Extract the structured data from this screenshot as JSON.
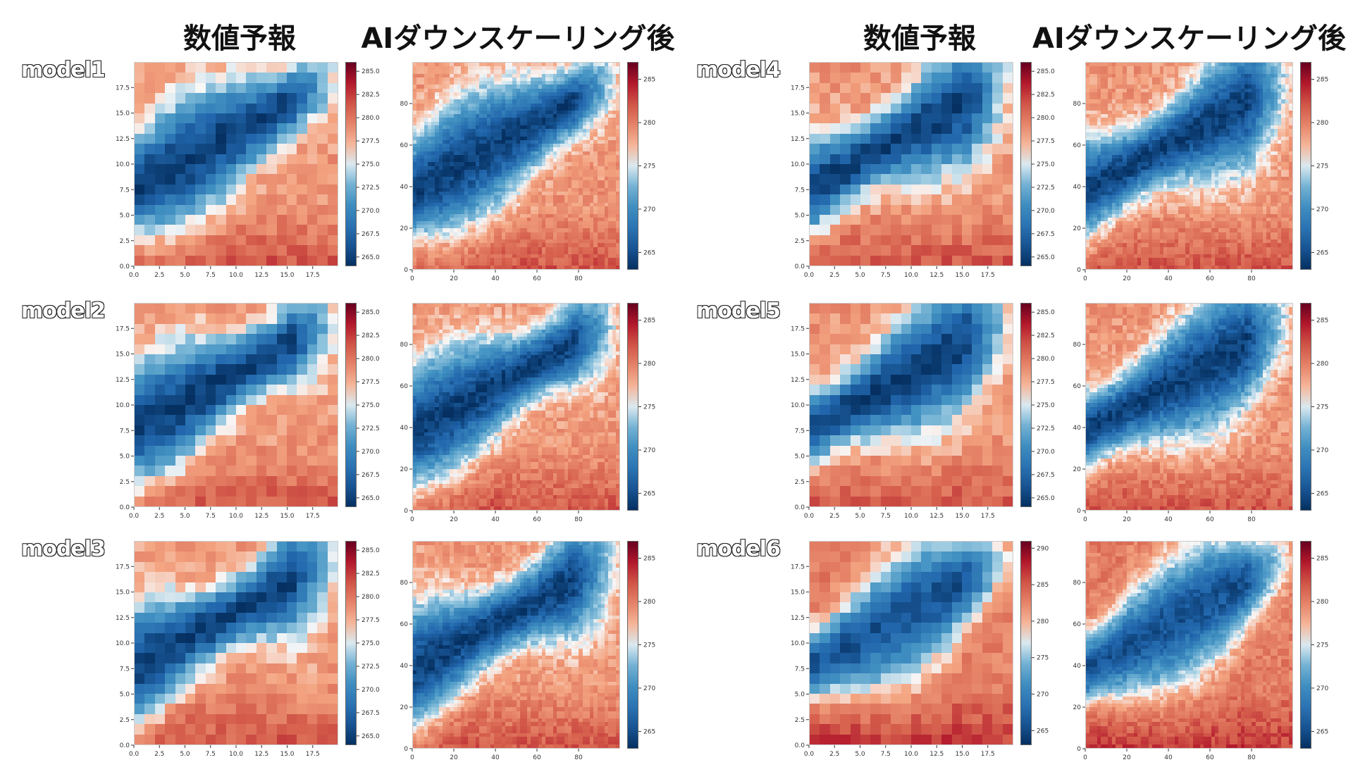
{
  "headers": {
    "left_forecast": "数値予報",
    "left_ai": "AIダウンスケーリング後",
    "right_forecast": "数値予報",
    "right_ai": "AIダウンスケーリング後"
  },
  "colors": {
    "map_low": "#053061",
    "map_mid": "#f7f7f7",
    "map_high": "#67001f"
  },
  "chart_data": [
    {
      "type": "heatmap",
      "model": "model1",
      "kind": "forecast",
      "x_ticks": [
        "0.0",
        "2.5",
        "5.0",
        "7.5",
        "10.0",
        "12.5",
        "15.0",
        "17.5"
      ],
      "y_ticks": [
        "0.0",
        "2.5",
        "5.0",
        "7.5",
        "10.0",
        "12.5",
        "15.0",
        "17.5"
      ],
      "colorbar_ticks": [
        "265.0",
        "267.5",
        "270.0",
        "272.5",
        "275.0",
        "277.5",
        "280.0",
        "282.5",
        "285.0"
      ],
      "vmin": 264,
      "vmax": 286,
      "grid_size": 20,
      "variant": 0
    },
    {
      "type": "heatmap",
      "model": "model1",
      "kind": "ai",
      "x_ticks": [
        "0",
        "20",
        "40",
        "60",
        "80"
      ],
      "y_ticks": [
        "0",
        "20",
        "40",
        "60",
        "80"
      ],
      "colorbar_ticks": [
        "265",
        "270",
        "275",
        "280",
        "285"
      ],
      "vmin": 263,
      "vmax": 287,
      "grid_size": 56,
      "variant": 0
    },
    {
      "type": "heatmap",
      "model": "model2",
      "kind": "forecast",
      "x_ticks": [
        "0.0",
        "2.5",
        "5.0",
        "7.5",
        "10.0",
        "12.5",
        "15.0",
        "17.5"
      ],
      "y_ticks": [
        "0.0",
        "2.5",
        "5.0",
        "7.5",
        "10.0",
        "12.5",
        "15.0",
        "17.5"
      ],
      "colorbar_ticks": [
        "265.0",
        "267.5",
        "270.0",
        "272.5",
        "275.0",
        "277.5",
        "280.0",
        "282.5",
        "285.0"
      ],
      "vmin": 264,
      "vmax": 286,
      "grid_size": 20,
      "variant": 1
    },
    {
      "type": "heatmap",
      "model": "model2",
      "kind": "ai",
      "x_ticks": [
        "0",
        "20",
        "40",
        "60",
        "80"
      ],
      "y_ticks": [
        "0",
        "20",
        "40",
        "60",
        "80"
      ],
      "colorbar_ticks": [
        "265",
        "270",
        "275",
        "280",
        "285"
      ],
      "vmin": 263,
      "vmax": 287,
      "grid_size": 56,
      "variant": 1
    },
    {
      "type": "heatmap",
      "model": "model3",
      "kind": "forecast",
      "x_ticks": [
        "0.0",
        "2.5",
        "5.0",
        "7.5",
        "10.0",
        "12.5",
        "15.0",
        "17.5"
      ],
      "y_ticks": [
        "0.0",
        "2.5",
        "5.0",
        "7.5",
        "10.0",
        "12.5",
        "15.0",
        "17.5"
      ],
      "colorbar_ticks": [
        "265.0",
        "267.5",
        "270.0",
        "272.5",
        "275.0",
        "277.5",
        "280.0",
        "282.5",
        "285.0"
      ],
      "vmin": 264,
      "vmax": 286,
      "grid_size": 20,
      "variant": 2
    },
    {
      "type": "heatmap",
      "model": "model3",
      "kind": "ai",
      "x_ticks": [
        "0",
        "20",
        "40",
        "60",
        "80"
      ],
      "y_ticks": [
        "0",
        "20",
        "40",
        "60",
        "80"
      ],
      "colorbar_ticks": [
        "265",
        "270",
        "275",
        "280",
        "285"
      ],
      "vmin": 263,
      "vmax": 287,
      "grid_size": 56,
      "variant": 2
    },
    {
      "type": "heatmap",
      "model": "model4",
      "kind": "forecast",
      "x_ticks": [
        "0.0",
        "2.5",
        "5.0",
        "7.5",
        "10.0",
        "12.5",
        "15.0",
        "17.5"
      ],
      "y_ticks": [
        "0.0",
        "2.5",
        "5.0",
        "7.5",
        "10.0",
        "12.5",
        "15.0",
        "17.5"
      ],
      "colorbar_ticks": [
        "265.0",
        "267.5",
        "270.0",
        "272.5",
        "275.0",
        "277.5",
        "280.0",
        "282.5",
        "285.0"
      ],
      "vmin": 264,
      "vmax": 286,
      "grid_size": 20,
      "variant": 3
    },
    {
      "type": "heatmap",
      "model": "model4",
      "kind": "ai",
      "x_ticks": [
        "0",
        "20",
        "40",
        "60",
        "80"
      ],
      "y_ticks": [
        "0",
        "20",
        "40",
        "60",
        "80"
      ],
      "colorbar_ticks": [
        "265",
        "270",
        "275",
        "280",
        "285"
      ],
      "vmin": 263,
      "vmax": 287,
      "grid_size": 56,
      "variant": 3
    },
    {
      "type": "heatmap",
      "model": "model5",
      "kind": "forecast",
      "x_ticks": [
        "0.0",
        "2.5",
        "5.0",
        "7.5",
        "10.0",
        "12.5",
        "15.0",
        "17.5"
      ],
      "y_ticks": [
        "0.0",
        "2.5",
        "5.0",
        "7.5",
        "10.0",
        "12.5",
        "15.0",
        "17.5"
      ],
      "colorbar_ticks": [
        "265.0",
        "267.5",
        "270.0",
        "272.5",
        "275.0",
        "277.5",
        "280.0",
        "282.5",
        "285.0"
      ],
      "vmin": 264,
      "vmax": 286,
      "grid_size": 20,
      "variant": 4
    },
    {
      "type": "heatmap",
      "model": "model5",
      "kind": "ai",
      "x_ticks": [
        "0",
        "20",
        "40",
        "60",
        "80"
      ],
      "y_ticks": [
        "0",
        "20",
        "40",
        "60",
        "80"
      ],
      "colorbar_ticks": [
        "265",
        "270",
        "275",
        "280",
        "285"
      ],
      "vmin": 263,
      "vmax": 287,
      "grid_size": 56,
      "variant": 4
    },
    {
      "type": "heatmap",
      "model": "model6",
      "kind": "forecast",
      "x_ticks": [
        "0.0",
        "2.5",
        "5.0",
        "7.5",
        "10.0",
        "12.5",
        "15.0",
        "17.5"
      ],
      "y_ticks": [
        "0.0",
        "2.5",
        "5.0",
        "7.5",
        "10.0",
        "12.5",
        "15.0",
        "17.5"
      ],
      "colorbar_ticks": [
        "265",
        "270",
        "275",
        "280",
        "285",
        "290"
      ],
      "vmin": 263,
      "vmax": 291,
      "grid_size": 20,
      "variant": 5
    },
    {
      "type": "heatmap",
      "model": "model6",
      "kind": "ai",
      "x_ticks": [
        "0",
        "20",
        "40",
        "60",
        "80"
      ],
      "y_ticks": [
        "0",
        "20",
        "40",
        "60",
        "80"
      ],
      "colorbar_ticks": [
        "265",
        "270",
        "275",
        "280",
        "285"
      ],
      "vmin": 263,
      "vmax": 287,
      "grid_size": 56,
      "variant": 5
    }
  ]
}
